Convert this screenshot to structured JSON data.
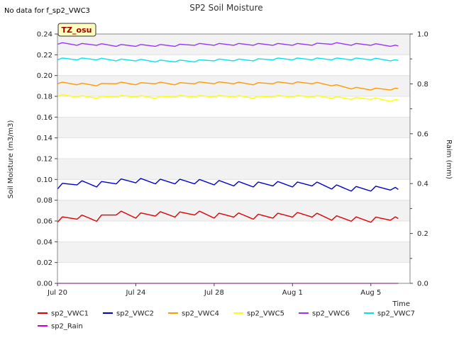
{
  "chart_data": {
    "type": "line",
    "title": "SP2 Soil Moisture",
    "note": "No data for f_sp2_VWC3",
    "badge": "TZ_osu",
    "xlabel": "Time",
    "ylabel": "Soil Moisture (m3/m3)",
    "y2label": "Raim (mm)",
    "ylim": [
      0,
      0.24
    ],
    "y2lim": [
      0,
      1.0
    ],
    "xlim_days": [
      0,
      18
    ],
    "x_ticks": [
      {
        "day": 0,
        "label": "Jul 20"
      },
      {
        "day": 4,
        "label": "Jul 24"
      },
      {
        "day": 8,
        "label": "Jul 28"
      },
      {
        "day": 12,
        "label": "Aug 1"
      },
      {
        "day": 16,
        "label": "Aug 5"
      }
    ],
    "y_ticks": [
      "0.00",
      "0.02",
      "0.04",
      "0.06",
      "0.08",
      "0.10",
      "0.12",
      "0.14",
      "0.16",
      "0.18",
      "0.20",
      "0.22",
      "0.24"
    ],
    "y2_ticks": [
      "0.0",
      "0.2",
      "0.4",
      "0.6",
      "0.8",
      "1.0"
    ],
    "series": [
      {
        "name": "sp2_VWC1",
        "color": "#dd0000",
        "axis": "left",
        "x_days": [
          0.0,
          1.0,
          2.0,
          3.0,
          4.0,
          5.0,
          6.0,
          7.0,
          8.0,
          9.0,
          10.0,
          11.0,
          12.0,
          13.0,
          14.0,
          15.0,
          16.0,
          17.0,
          17.4
        ],
        "y": [
          0.061,
          0.064,
          0.062,
          0.068,
          0.065,
          0.067,
          0.066,
          0.068,
          0.065,
          0.066,
          0.064,
          0.065,
          0.066,
          0.066,
          0.063,
          0.062,
          0.061,
          0.063,
          0.061
        ]
      },
      {
        "name": "sp2_VWC2",
        "color": "#0000cc",
        "axis": "left",
        "x_days": [
          0.0,
          1.0,
          2.0,
          3.0,
          4.0,
          5.0,
          6.0,
          7.0,
          8.0,
          9.0,
          10.0,
          11.0,
          12.0,
          13.0,
          14.0,
          15.0,
          16.0,
          17.0,
          17.4
        ],
        "y": [
          0.093,
          0.097,
          0.095,
          0.098,
          0.099,
          0.098,
          0.098,
          0.098,
          0.097,
          0.096,
          0.095,
          0.096,
          0.095,
          0.096,
          0.093,
          0.091,
          0.091,
          0.092,
          0.089
        ]
      },
      {
        "name": "sp2_VWC4",
        "color": "#ff9900",
        "axis": "left",
        "x_days": [
          0.0,
          1.0,
          2.0,
          3.0,
          4.0,
          5.0,
          6.0,
          7.0,
          8.0,
          9.0,
          10.0,
          11.0,
          12.0,
          13.0,
          14.0,
          15.0,
          16.0,
          17.0,
          17.4
        ],
        "y": [
          0.193,
          0.192,
          0.191,
          0.193,
          0.192,
          0.193,
          0.192,
          0.193,
          0.193,
          0.193,
          0.192,
          0.193,
          0.193,
          0.193,
          0.191,
          0.188,
          0.187,
          0.187,
          0.187
        ]
      },
      {
        "name": "sp2_VWC5",
        "color": "#ffff00",
        "axis": "left",
        "x_days": [
          0.0,
          1.0,
          2.0,
          3.0,
          4.0,
          5.0,
          6.0,
          7.0,
          8.0,
          9.0,
          10.0,
          11.0,
          12.0,
          13.0,
          14.0,
          15.0,
          16.0,
          17.0,
          17.4
        ],
        "y": [
          0.181,
          0.18,
          0.179,
          0.18,
          0.18,
          0.179,
          0.18,
          0.18,
          0.18,
          0.18,
          0.179,
          0.18,
          0.18,
          0.18,
          0.179,
          0.178,
          0.178,
          0.176,
          0.176
        ]
      },
      {
        "name": "sp2_VWC6",
        "color": "#9933ff",
        "axis": "left",
        "x_days": [
          0.0,
          1.0,
          2.0,
          3.0,
          4.0,
          5.0,
          6.0,
          7.0,
          8.0,
          9.0,
          10.0,
          11.0,
          12.0,
          13.0,
          14.0,
          15.0,
          16.0,
          17.0,
          17.4
        ],
        "y": [
          0.231,
          0.23,
          0.23,
          0.229,
          0.229,
          0.229,
          0.229,
          0.23,
          0.23,
          0.23,
          0.23,
          0.23,
          0.23,
          0.23,
          0.231,
          0.23,
          0.23,
          0.229,
          0.228
        ]
      },
      {
        "name": "sp2_VWC7",
        "color": "#00e5e5",
        "axis": "left",
        "x_days": [
          0.0,
          1.0,
          2.0,
          3.0,
          4.0,
          5.0,
          6.0,
          7.0,
          8.0,
          9.0,
          10.0,
          11.0,
          12.0,
          13.0,
          14.0,
          15.0,
          16.0,
          17.0,
          17.4
        ],
        "y": [
          0.216,
          0.216,
          0.216,
          0.215,
          0.215,
          0.214,
          0.214,
          0.214,
          0.215,
          0.215,
          0.215,
          0.216,
          0.216,
          0.216,
          0.216,
          0.216,
          0.216,
          0.215,
          0.214
        ]
      },
      {
        "name": "sp2_Rain",
        "color": "#cc00cc",
        "axis": "right",
        "x_days": [
          0.0,
          17.4
        ],
        "y": [
          0.0,
          0.0
        ]
      }
    ],
    "legend_position": "bottom",
    "grid": "horizontal bands"
  }
}
